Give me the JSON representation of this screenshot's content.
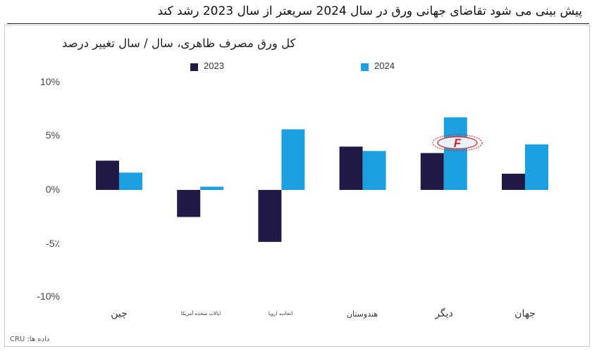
{
  "headline": "پیش بینی می شود تقاضای جهانی ورق در سال 2024 سریعتر از سال 2023 رشد کند",
  "source": "داده ها: CRU",
  "colors": {
    "2023": "#211a47",
    "2024": "#1ba1e2"
  },
  "watermark": {
    "letter": "F"
  },
  "chart_data": {
    "type": "bar",
    "title": "کل ورق مصرف ظاهری، سال / سال تغییر درصد",
    "categories": [
      "چین",
      "ایالات متحده آمریکا",
      "اتحادیه اروپا",
      "هندوستان",
      "دیگر",
      "جهان"
    ],
    "series": [
      {
        "name": "2023",
        "values": [
          2.7,
          -2.5,
          -4.8,
          4.0,
          3.4,
          1.5
        ]
      },
      {
        "name": "2024",
        "values": [
          1.6,
          0.3,
          5.6,
          3.6,
          6.7,
          4.2
        ]
      }
    ],
    "yticks": [
      "10%",
      "5%",
      "0%",
      "-5٪",
      "-10%"
    ],
    "ylim": [
      -10,
      10
    ],
    "legend_position": "top",
    "grid": false
  }
}
